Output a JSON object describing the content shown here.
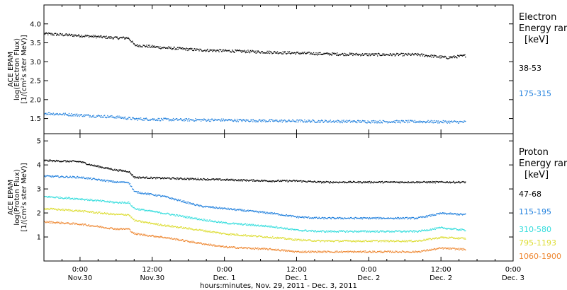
{
  "chart_data": {
    "type": "scatter",
    "xlabel": "hours:minutes, Nov. 29, 2011 - Dec. 3, 2011",
    "x_unit": "hours after 2011-11-29 00:00",
    "x_range": [
      18,
      96
    ],
    "x_ticks": [
      {
        "x": 24,
        "time": "0:00",
        "date": "Nov.30"
      },
      {
        "x": 36,
        "time": "12:00",
        "date": "Nov.30"
      },
      {
        "x": 48,
        "time": "0:00",
        "date": "Dec. 1"
      },
      {
        "x": 60,
        "time": "12:00",
        "date": "Dec. 1"
      },
      {
        "x": 72,
        "time": "0:00",
        "date": "Dec. 2"
      },
      {
        "x": 84,
        "time": "12:00",
        "date": "Dec. 2"
      },
      {
        "x": 96,
        "time": "0:00",
        "date": "Dec. 3"
      }
    ],
    "panels": [
      {
        "id": "electron",
        "ylabel_lines": [
          "ACE EPAM",
          "log(Electron Flux)",
          "[1/(cm²s ster MeV)]"
        ],
        "ylim": [
          1.1,
          4.5
        ],
        "yticks": [
          1.5,
          2.0,
          2.5,
          3.0,
          3.5,
          4.0
        ],
        "ytick_labels": [
          "1.5",
          "2.0",
          "2.5",
          "3.0",
          "3.5",
          "4.0"
        ],
        "legend_title_lines": [
          "Electron",
          "Energy ran",
          "[keV]"
        ],
        "series": [
          {
            "name": "38-53",
            "color": "#000000",
            "x": [
              18,
              24,
              30,
              32,
              33,
              38,
              44,
              48,
              56,
              64,
              72,
              80,
              85,
              88
            ],
            "y": [
              3.75,
              3.7,
              3.64,
              3.64,
              3.45,
              3.38,
              3.32,
              3.3,
              3.26,
              3.22,
              3.2,
              3.2,
              3.12,
              3.17
            ]
          },
          {
            "name": "175-315",
            "color": "#1f7fdd",
            "x": [
              18,
              24,
              30,
              33,
              40,
              48,
              56,
              64,
              72,
              80,
              88
            ],
            "y": [
              1.65,
              1.6,
              1.55,
              1.5,
              1.48,
              1.47,
              1.45,
              1.44,
              1.43,
              1.43,
              1.42
            ]
          }
        ]
      },
      {
        "id": "proton",
        "ylabel_lines": [
          "ACE EPAM",
          "log(Proton Flux)",
          "[1/(cm²s ster MeV)]"
        ],
        "ylim": [
          0,
          5.3
        ],
        "yticks": [
          1,
          2,
          3,
          4,
          5
        ],
        "ytick_labels": [
          "1",
          "2",
          "3",
          "4",
          "5"
        ],
        "legend_title_lines": [
          "Proton",
          "Energy ran",
          "[keV]"
        ],
        "series": [
          {
            "name": "47-68",
            "color": "#000000",
            "x": [
              18,
              24,
              26,
              28,
              30,
              32,
              33,
              40,
              48,
              56,
              60,
              64,
              72,
              80,
              88
            ],
            "y": [
              4.2,
              4.15,
              4.0,
              3.9,
              3.8,
              3.75,
              3.5,
              3.45,
              3.4,
              3.35,
              3.35,
              3.3,
              3.3,
              3.3,
              3.3
            ]
          },
          {
            "name": "115-195",
            "color": "#1f7fdd",
            "x": [
              18,
              24,
              30,
              32,
              33,
              38,
              44,
              48,
              56,
              60,
              64,
              72,
              80,
              84,
              88
            ],
            "y": [
              3.55,
              3.5,
              3.3,
              3.3,
              2.9,
              2.7,
              2.3,
              2.2,
              2.0,
              1.85,
              1.8,
              1.8,
              1.8,
              2.0,
              1.95
            ]
          },
          {
            "name": "310-580",
            "color": "#33dddd",
            "x": [
              18,
              24,
              30,
              32,
              33,
              38,
              44,
              48,
              56,
              60,
              64,
              72,
              80,
              84,
              88
            ],
            "y": [
              2.7,
              2.6,
              2.45,
              2.45,
              2.2,
              2.0,
              1.75,
              1.6,
              1.45,
              1.3,
              1.25,
              1.25,
              1.25,
              1.4,
              1.3
            ]
          },
          {
            "name": "795-1193",
            "color": "#dddd33",
            "x": [
              18,
              24,
              30,
              32,
              33,
              38,
              44,
              48,
              56,
              60,
              64,
              72,
              80,
              84,
              88
            ],
            "y": [
              2.2,
              2.1,
              1.95,
              1.95,
              1.7,
              1.5,
              1.3,
              1.15,
              1.0,
              0.9,
              0.85,
              0.85,
              0.85,
              1.0,
              0.95
            ]
          },
          {
            "name": "1060-1900",
            "color": "#ee8833",
            "x": [
              18,
              24,
              30,
              32,
              33,
              38,
              44,
              48,
              56,
              60,
              64,
              72,
              80,
              84,
              88
            ],
            "y": [
              1.65,
              1.55,
              1.35,
              1.35,
              1.15,
              1.0,
              0.75,
              0.6,
              0.5,
              0.4,
              0.4,
              0.4,
              0.4,
              0.55,
              0.5
            ]
          }
        ]
      }
    ]
  }
}
